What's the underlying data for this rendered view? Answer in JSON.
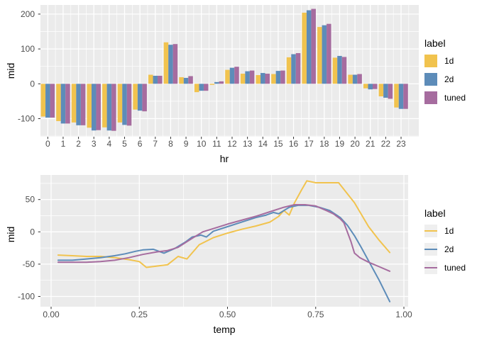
{
  "figure": {
    "background": "#FFFFFF",
    "panel_bg": "#EBEBEB",
    "grid_color": "#FFFFFF",
    "tick_mark_color": "#333333",
    "tick_text_color": "#4D4D4D",
    "axis_title_color": "#000000",
    "legend_key_bg": "#EFEFEF"
  },
  "chart_data": [
    {
      "type": "bar",
      "title": "",
      "xlabel": "hr",
      "ylabel": "mid",
      "legend": {
        "title": "label",
        "position": "right",
        "key": "fill"
      },
      "grid": "on",
      "ylim": [
        -152,
        226
      ],
      "y_ticks": [
        200,
        100,
        0,
        -100
      ],
      "y_minor_ticks": [
        150,
        50,
        -50,
        -150
      ],
      "categories": [
        "0",
        "1",
        "2",
        "3",
        "4",
        "5",
        "6",
        "7",
        "8",
        "9",
        "10",
        "11",
        "12",
        "13",
        "14",
        "15",
        "16",
        "17",
        "18",
        "19",
        "20",
        "21",
        "22",
        "23"
      ],
      "series": [
        {
          "name": "1d",
          "color": "#F1C34E",
          "values": [
            -94,
            -107,
            -111,
            -126,
            -125,
            -111,
            -74,
            26,
            119,
            19,
            -24,
            -3,
            40,
            29,
            25,
            28,
            76,
            204,
            163,
            75,
            26,
            -13,
            -36,
            -68
          ]
        },
        {
          "name": "2d",
          "color": "#5D8CB9",
          "values": [
            -97,
            -114,
            -119,
            -134,
            -134,
            -118,
            -77,
            23,
            112,
            17,
            -20,
            5,
            46,
            36,
            31,
            37,
            85,
            211,
            168,
            80,
            26,
            -16,
            -40,
            -72
          ]
        },
        {
          "name": "tuned",
          "color": "#A66C9F",
          "values": [
            -97,
            -114,
            -119,
            -133,
            -135,
            -120,
            -79,
            23,
            114,
            22,
            -20,
            7,
            49,
            38,
            29,
            38,
            88,
            215,
            172,
            77,
            28,
            -15,
            -43,
            -72
          ]
        }
      ]
    },
    {
      "type": "line",
      "title": "",
      "xlabel": "temp",
      "ylabel": "mid",
      "legend": {
        "title": "label",
        "position": "right",
        "key": "line"
      },
      "grid": "on",
      "xlim": [
        -0.03,
        1.01
      ],
      "ylim": [
        -117,
        88
      ],
      "x_ticks": {
        "values": [
          0,
          0.25,
          0.5,
          0.75,
          1.0
        ],
        "labels": [
          "0.00",
          "0.25",
          "0.50",
          "0.75",
          "1.00"
        ]
      },
      "x_minor_ticks": [
        0.125,
        0.375,
        0.625,
        0.875
      ],
      "y_ticks": [
        50,
        0,
        -50,
        -100
      ],
      "y_minor_ticks": [
        75,
        25,
        -25,
        -75
      ],
      "series": [
        {
          "name": "1d",
          "color": "#F1C34E",
          "points": [
            [
              0.02,
              -36
            ],
            [
              0.06,
              -37
            ],
            [
              0.1,
              -38
            ],
            [
              0.14,
              -38
            ],
            [
              0.18,
              -40
            ],
            [
              0.22,
              -43
            ],
            [
              0.25,
              -46
            ],
            [
              0.27,
              -55
            ],
            [
              0.3,
              -53
            ],
            [
              0.33,
              -51
            ],
            [
              0.36,
              -38
            ],
            [
              0.385,
              -42
            ],
            [
              0.42,
              -20
            ],
            [
              0.46,
              -9
            ],
            [
              0.5,
              -2
            ],
            [
              0.54,
              4
            ],
            [
              0.58,
              9
            ],
            [
              0.62,
              15
            ],
            [
              0.645,
              24
            ],
            [
              0.66,
              33
            ],
            [
              0.675,
              26
            ],
            [
              0.69,
              45
            ],
            [
              0.71,
              65
            ],
            [
              0.725,
              79
            ],
            [
              0.75,
              76
            ],
            [
              0.815,
              76
            ],
            [
              0.86,
              45
            ],
            [
              0.9,
              8
            ],
            [
              0.93,
              -13
            ],
            [
              0.96,
              -32
            ]
          ]
        },
        {
          "name": "2d",
          "color": "#5D8CB9",
          "points": [
            [
              0.02,
              -44
            ],
            [
              0.06,
              -44
            ],
            [
              0.1,
              -42
            ],
            [
              0.14,
              -40
            ],
            [
              0.18,
              -37
            ],
            [
              0.21,
              -34
            ],
            [
              0.24,
              -30
            ],
            [
              0.26,
              -28
            ],
            [
              0.29,
              -27
            ],
            [
              0.32,
              -33
            ],
            [
              0.35,
              -26
            ],
            [
              0.38,
              -16
            ],
            [
              0.4,
              -8
            ],
            [
              0.425,
              -5
            ],
            [
              0.44,
              -8
            ],
            [
              0.46,
              1
            ],
            [
              0.5,
              8
            ],
            [
              0.54,
              15
            ],
            [
              0.58,
              22
            ],
            [
              0.61,
              26
            ],
            [
              0.63,
              30
            ],
            [
              0.645,
              28
            ],
            [
              0.66,
              33
            ],
            [
              0.675,
              38
            ],
            [
              0.7,
              41
            ],
            [
              0.73,
              41
            ],
            [
              0.76,
              38
            ],
            [
              0.79,
              33
            ],
            [
              0.82,
              22
            ],
            [
              0.84,
              10
            ],
            [
              0.86,
              -6
            ],
            [
              0.88,
              -25
            ],
            [
              0.9,
              -45
            ],
            [
              0.93,
              -75
            ],
            [
              0.96,
              -108
            ]
          ]
        },
        {
          "name": "tuned",
          "color": "#A66C9F",
          "points": [
            [
              0.02,
              -47
            ],
            [
              0.06,
              -47
            ],
            [
              0.1,
              -47
            ],
            [
              0.14,
              -46
            ],
            [
              0.18,
              -44
            ],
            [
              0.22,
              -40
            ],
            [
              0.26,
              -35
            ],
            [
              0.3,
              -31
            ],
            [
              0.33,
              -29
            ],
            [
              0.36,
              -24
            ],
            [
              0.4,
              -10
            ],
            [
              0.43,
              0
            ],
            [
              0.46,
              5
            ],
            [
              0.5,
              12
            ],
            [
              0.54,
              18
            ],
            [
              0.58,
              24
            ],
            [
              0.62,
              31
            ],
            [
              0.66,
              38
            ],
            [
              0.69,
              42
            ],
            [
              0.72,
              42
            ],
            [
              0.75,
              40
            ],
            [
              0.78,
              33
            ],
            [
              0.8,
              28
            ],
            [
              0.82,
              20
            ],
            [
              0.83,
              14
            ],
            [
              0.85,
              -15
            ],
            [
              0.86,
              -33
            ],
            [
              0.875,
              -40
            ],
            [
              0.9,
              -47
            ],
            [
              0.93,
              -54
            ],
            [
              0.96,
              -61
            ]
          ]
        }
      ]
    }
  ]
}
